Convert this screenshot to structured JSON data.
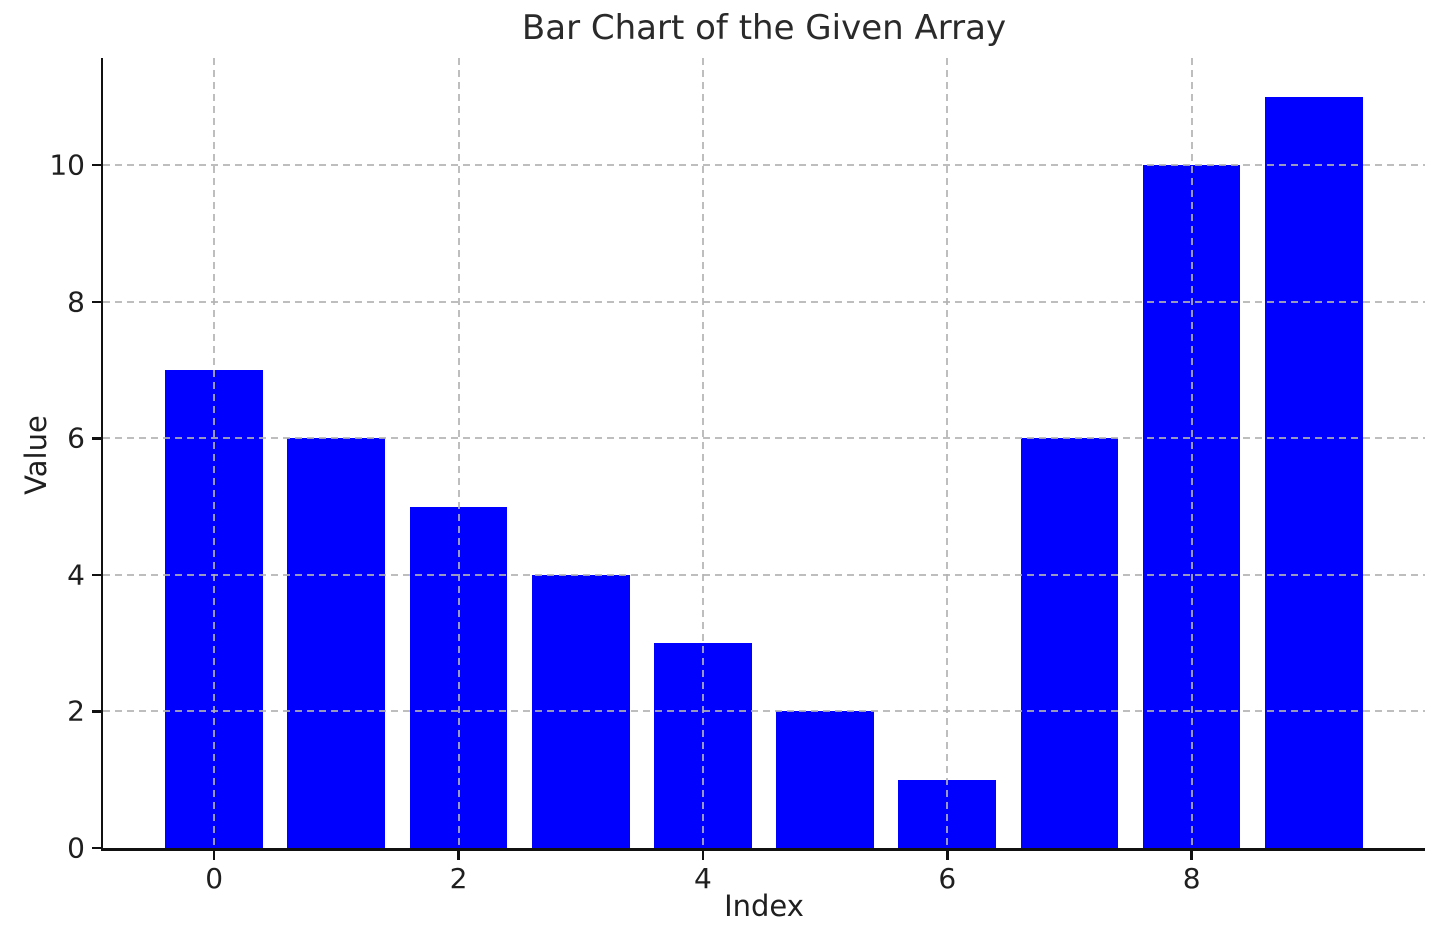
{
  "chart_data": {
    "type": "bar",
    "title": "Bar Chart of the Given Array",
    "xlabel": "Index",
    "ylabel": "Value",
    "categories": [
      0,
      1,
      2,
      3,
      4,
      5,
      6,
      7,
      8,
      9
    ],
    "values": [
      7,
      6,
      5,
      4,
      3,
      2,
      1,
      6,
      10,
      11
    ],
    "bar_color": "#0000ff",
    "bar_width": 0.8,
    "xlim": [
      -0.91,
      9.91
    ],
    "ylim": [
      0,
      11.57
    ],
    "xticks": [
      0,
      2,
      4,
      6,
      8
    ],
    "yticks": [
      0,
      2,
      4,
      6,
      8,
      10
    ],
    "grid": true,
    "grid_style": "dashed",
    "grid_color": "#b2b2b2",
    "grid_above_bars": true,
    "axis_color": "#111111",
    "text_color": "#1f1f1f",
    "background": "#ffffff",
    "legend": "none",
    "spines": [
      "left",
      "bottom"
    ]
  }
}
